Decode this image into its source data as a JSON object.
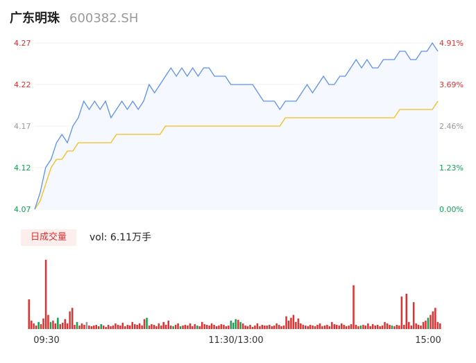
{
  "header": {
    "name": "广东明珠",
    "code": "600382.SH"
  },
  "volume": {
    "badge": "日成交量",
    "label": "vol: 6.11万手"
  },
  "colors": {
    "up": "#e03131",
    "down": "#12a150",
    "flat": "#999999",
    "price_line": "#5b8ff9",
    "avg_line": "#f6bd16",
    "area_fill": "#f5f8ff"
  },
  "chart_data": [
    {
      "type": "line",
      "title": "",
      "ylim": [
        4.07,
        4.27
      ],
      "y_ticks": [
        "4.27",
        "4.22",
        "4.17",
        "4.12",
        "4.07"
      ],
      "pct_ticks": [
        "4.91%",
        "3.69%",
        "2.46%",
        "1.23%",
        "0.00%"
      ],
      "prev_close": 4.07,
      "x_labels": [
        "09:30",
        "11:30/13:00",
        "15:00"
      ],
      "series": [
        {
          "values": [
            4.07,
            4.09,
            4.12,
            4.13,
            4.15,
            4.16,
            4.15,
            4.17,
            4.18,
            4.2,
            4.19,
            4.2,
            4.19,
            4.2,
            4.18,
            4.19,
            4.2,
            4.19,
            4.2,
            4.19,
            4.2,
            4.22,
            4.21,
            4.22,
            4.23,
            4.24,
            4.23,
            4.24,
            4.23,
            4.24,
            4.23,
            4.24,
            4.24,
            4.23,
            4.23,
            4.23,
            4.22,
            4.22,
            4.22,
            4.22,
            4.22,
            4.21,
            4.2,
            4.2,
            4.2,
            4.19,
            4.2,
            4.2,
            4.2,
            4.21,
            4.22,
            4.21,
            4.22,
            4.23,
            4.22,
            4.22,
            4.23,
            4.23,
            4.24,
            4.25,
            4.24,
            4.25,
            4.24,
            4.24,
            4.25,
            4.25,
            4.25,
            4.26,
            4.26,
            4.25,
            4.25,
            4.26,
            4.26,
            4.27,
            4.26
          ]
        },
        {
          "values": [
            4.07,
            4.08,
            4.1,
            4.12,
            4.13,
            4.13,
            4.14,
            4.14,
            4.15,
            4.15,
            4.15,
            4.15,
            4.15,
            4.15,
            4.15,
            4.16,
            4.16,
            4.16,
            4.16,
            4.16,
            4.16,
            4.16,
            4.16,
            4.16,
            4.17,
            4.17,
            4.17,
            4.17,
            4.17,
            4.17,
            4.17,
            4.17,
            4.17,
            4.17,
            4.17,
            4.17,
            4.17,
            4.17,
            4.17,
            4.17,
            4.17,
            4.17,
            4.17,
            4.17,
            4.17,
            4.17,
            4.18,
            4.18,
            4.18,
            4.18,
            4.18,
            4.18,
            4.18,
            4.18,
            4.18,
            4.18,
            4.18,
            4.18,
            4.18,
            4.18,
            4.18,
            4.18,
            4.18,
            4.18,
            4.18,
            4.18,
            4.18,
            4.19,
            4.19,
            4.19,
            4.19,
            4.19,
            4.19,
            4.19,
            4.2
          ]
        }
      ]
    },
    {
      "type": "bar",
      "title": "",
      "values": [
        0.42,
        0.12,
        0.08,
        0.05,
        0.1,
        0.07,
        0.15,
        0.98,
        0.2,
        0.1,
        0.12,
        0.08,
        0.16,
        0.07,
        0.09,
        0.14,
        0.08,
        0.25,
        0.3,
        0.06,
        0.1,
        0.05,
        0.08,
        0.06,
        0.1,
        0.05,
        0.04,
        0.05,
        0.06,
        0.04,
        0.07,
        0.05,
        0.03,
        0.06,
        0.04,
        0.05,
        0.08,
        0.06,
        0.05,
        0.09,
        0.04,
        0.06,
        0.05,
        0.1,
        0.07,
        0.06,
        0.08,
        0.05,
        0.14,
        0.16,
        0.05,
        0.07,
        0.06,
        0.04,
        0.08,
        0.05,
        0.1,
        0.06,
        0.12,
        0.05,
        0.04,
        0.06,
        0.08,
        0.04,
        0.05,
        0.06,
        0.05,
        0.08,
        0.04,
        0.07,
        0.05,
        0.04,
        0.1,
        0.07,
        0.06,
        0.05,
        0.08,
        0.06,
        0.04,
        0.05,
        0.07,
        0.06,
        0.04,
        0.05,
        0.12,
        0.09,
        0.14,
        0.13,
        0.1,
        0.08,
        0.05,
        0.04,
        0.06,
        0.03,
        0.05,
        0.08,
        0.04,
        0.06,
        0.05,
        0.05,
        0.06,
        0.04,
        0.05,
        0.08,
        0.06,
        0.04,
        0.05,
        0.18,
        0.12,
        0.16,
        0.2,
        0.1,
        0.15,
        0.08,
        0.06,
        0.05,
        0.04,
        0.06,
        0.05,
        0.04,
        0.06,
        0.08,
        0.04,
        0.05,
        0.06,
        0.04,
        0.1,
        0.07,
        0.06,
        0.05,
        0.08,
        0.06,
        0.04,
        0.05,
        0.07,
        0.62,
        0.06,
        0.04,
        0.05,
        0.06,
        0.05,
        0.08,
        0.04,
        0.07,
        0.05,
        0.06,
        0.04,
        0.05,
        0.1,
        0.08,
        0.06,
        0.05,
        0.04,
        0.06,
        0.05,
        0.46,
        0.06,
        0.5,
        0.1,
        0.05,
        0.38,
        0.08,
        0.06,
        0.05,
        0.1,
        0.12,
        0.16,
        0.2,
        0.25,
        0.3,
        0.1,
        0.08
      ],
      "colors": [
        "up",
        "up",
        "up",
        "up",
        "down",
        "up",
        "up",
        "up",
        "up",
        "down",
        "up",
        "up",
        "down",
        "up",
        "up",
        "up",
        "up",
        "up",
        "up",
        "up",
        "down",
        "up",
        "up",
        "up",
        "flat",
        "up",
        "up",
        "up",
        "up",
        "up",
        "down",
        "up",
        "up",
        "up",
        "up",
        "up",
        "up",
        "up",
        "up",
        "up",
        "up",
        "up",
        "up",
        "up",
        "up",
        "up",
        "up",
        "up",
        "up",
        "down",
        "up",
        "up",
        "up",
        "up",
        "up",
        "up",
        "up",
        "up",
        "up",
        "up",
        "down",
        "up",
        "up",
        "down",
        "up",
        "up",
        "up",
        "up",
        "up",
        "up",
        "down",
        "up",
        "up",
        "up",
        "up",
        "up",
        "up",
        "up",
        "up",
        "up",
        "up",
        "up",
        "up",
        "up",
        "down",
        "down",
        "down",
        "up",
        "down",
        "up",
        "up",
        "up",
        "up",
        "up",
        "up",
        "up",
        "up",
        "up",
        "up",
        "up",
        "up",
        "up",
        "up",
        "up",
        "up",
        "up",
        "up",
        "up",
        "up",
        "up",
        "up",
        "up",
        "up",
        "up",
        "up",
        "up",
        "up",
        "up",
        "up",
        "up",
        "up",
        "up",
        "up",
        "up",
        "up",
        "up",
        "up",
        "up",
        "up",
        "up",
        "up",
        "up",
        "up",
        "up",
        "up",
        "up",
        "up",
        "up",
        "down",
        "up",
        "up",
        "up",
        "up",
        "up",
        "up",
        "up",
        "up",
        "up",
        "up",
        "up",
        "up",
        "down",
        "up",
        "up",
        "up",
        "up",
        "up",
        "up",
        "up",
        "up",
        "up",
        "up",
        "up",
        "up",
        "up",
        "up",
        "down",
        "up",
        "up",
        "up",
        "up",
        "up",
        "down",
        "up",
        "up",
        "up",
        "flat"
      ]
    }
  ]
}
